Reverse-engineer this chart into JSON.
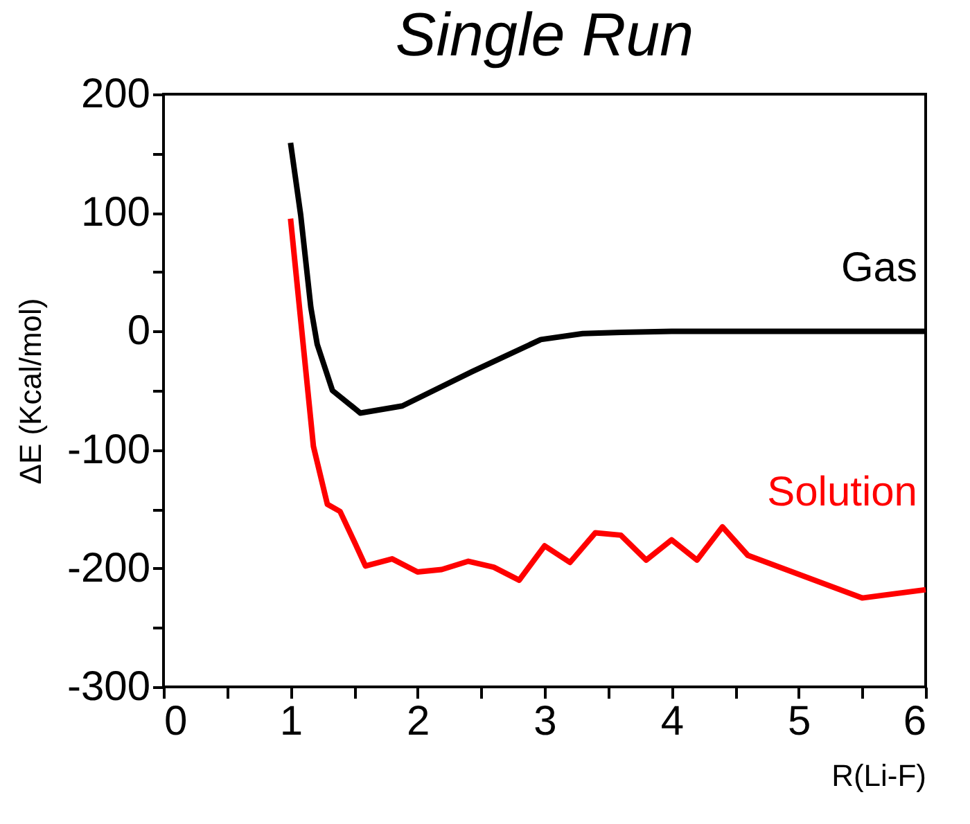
{
  "chart_data": {
    "type": "line",
    "title": "Single Run",
    "xlabel": "R(Li-F)",
    "ylabel": "ΔE (Kcal/mol)",
    "xlim": [
      0,
      6
    ],
    "ylim": [
      -300,
      200
    ],
    "xticks": [
      0,
      {
        "value": 0.5,
        "label": null
      },
      1,
      {
        "value": 1.5,
        "label": null
      },
      2,
      {
        "value": 2.5,
        "label": null
      },
      3,
      {
        "value": 3.5,
        "label": null
      },
      4,
      {
        "value": 4.5,
        "label": null
      },
      5,
      {
        "value": 5.5,
        "label": null
      },
      6
    ],
    "yticks": [
      -300,
      {
        "value": -250,
        "label": null
      },
      -200,
      {
        "value": -150,
        "label": null
      },
      -100,
      {
        "value": -50,
        "label": null
      },
      0,
      {
        "value": 50,
        "label": null
      },
      100,
      {
        "value": 150,
        "label": null
      },
      200
    ],
    "grid": false,
    "marker": "none",
    "line_style": "solid",
    "series": [
      {
        "name": "Gas",
        "color": "#000000",
        "x": [
          1.0,
          1.08,
          1.16,
          1.21,
          1.33,
          1.55,
          1.88,
          2.43,
          2.97,
          3.3,
          3.6,
          4.0,
          6.0
        ],
        "values": [
          159,
          98,
          20,
          -11,
          -50,
          -69,
          -63,
          -34,
          -7,
          -2,
          -1,
          0,
          0
        ]
      },
      {
        "name": "Solution",
        "color": "#ff0000",
        "x": [
          1.0,
          1.18,
          1.29,
          1.39,
          1.5,
          1.59,
          1.8,
          2.0,
          2.19,
          2.4,
          2.6,
          2.8,
          3.0,
          3.2,
          3.4,
          3.6,
          3.8,
          4.0,
          4.2,
          4.4,
          4.6,
          5.5,
          6.0
        ],
        "values": [
          95,
          -97,
          -146,
          -152,
          -177,
          -198,
          -192,
          -203,
          -201,
          -194,
          -199,
          -210,
          -181,
          -195,
          -170,
          -172,
          -193,
          -176,
          -193,
          -165,
          -189,
          -225,
          -218
        ]
      }
    ]
  }
}
